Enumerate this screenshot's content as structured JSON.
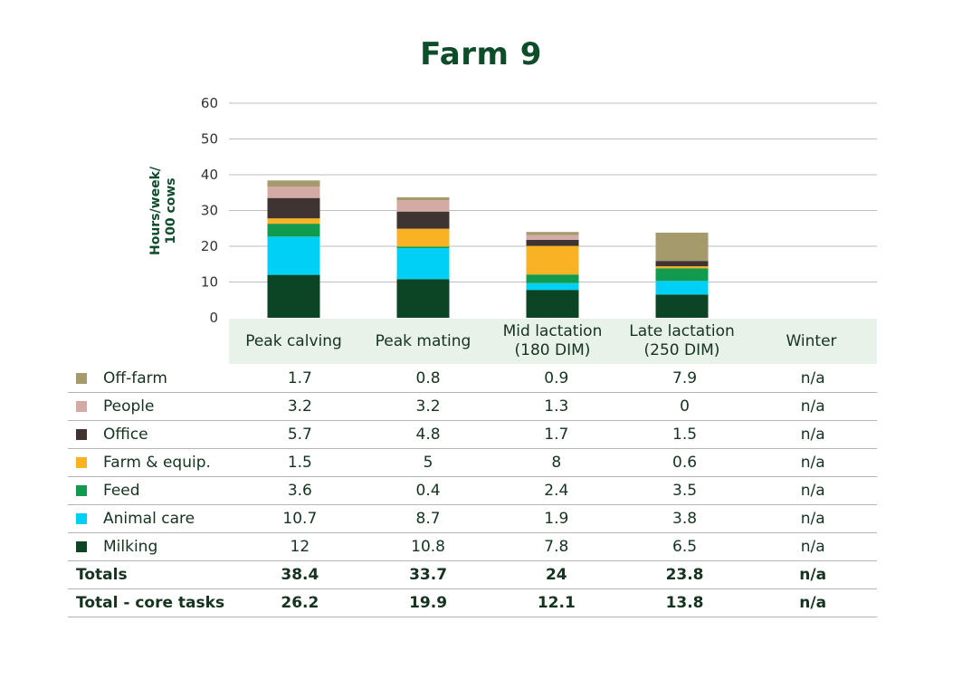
{
  "chart_data": {
    "type": "bar",
    "stacked": true,
    "title": "Farm 9",
    "ylabel": "Hours/week/\n100 cows",
    "ylim": [
      0,
      60
    ],
    "yticks": [
      0,
      10,
      20,
      30,
      40,
      50,
      60
    ],
    "grid": true,
    "categories": [
      "Peak calving",
      "Peak mating",
      "Mid lactation\n(180 DIM)",
      "Late lactation\n(250 DIM)",
      "Winter"
    ],
    "series": [
      {
        "name": "Milking",
        "color": "#0c4526",
        "values": [
          12,
          10.8,
          7.8,
          6.5,
          null
        ],
        "labels": [
          "12",
          "10.8",
          "7.8",
          "6.5",
          "n/a"
        ]
      },
      {
        "name": "Animal care",
        "color": "#00d0f5",
        "values": [
          10.7,
          8.7,
          1.9,
          3.8,
          null
        ],
        "labels": [
          "10.7",
          "8.7",
          "1.9",
          "3.8",
          "n/a"
        ]
      },
      {
        "name": "Feed",
        "color": "#129b4e",
        "values": [
          3.6,
          0.4,
          2.4,
          3.5,
          null
        ],
        "labels": [
          "3.6",
          "0.4",
          "2.4",
          "3.5",
          "n/a"
        ]
      },
      {
        "name": "Farm & equip.",
        "color": "#f8b223",
        "values": [
          1.5,
          5,
          8,
          0.6,
          null
        ],
        "labels": [
          "1.5",
          "5",
          "8",
          "0.6",
          "n/a"
        ]
      },
      {
        "name": "Office",
        "color": "#3f3432",
        "values": [
          5.7,
          4.8,
          1.7,
          1.5,
          null
        ],
        "labels": [
          "5.7",
          "4.8",
          "1.7",
          "1.5",
          "n/a"
        ]
      },
      {
        "name": "People",
        "color": "#d4aba4",
        "values": [
          3.2,
          3.2,
          1.3,
          0,
          null
        ],
        "labels": [
          "3.2",
          "3.2",
          "1.3",
          "0",
          "n/a"
        ]
      },
      {
        "name": "Off-farm",
        "color": "#a59a6c",
        "values": [
          1.7,
          0.8,
          0.9,
          7.9,
          null
        ],
        "labels": [
          "1.7",
          "0.8",
          "0.9",
          "7.9",
          "n/a"
        ]
      }
    ],
    "totals": {
      "label": "Totals",
      "values": [
        "38.4",
        "33.7",
        "24",
        "23.8",
        "n/a"
      ]
    },
    "core_totals": {
      "label": "Total - core tasks",
      "values": [
        "26.2",
        "19.9",
        "12.1",
        "13.8",
        "n/a"
      ]
    }
  }
}
